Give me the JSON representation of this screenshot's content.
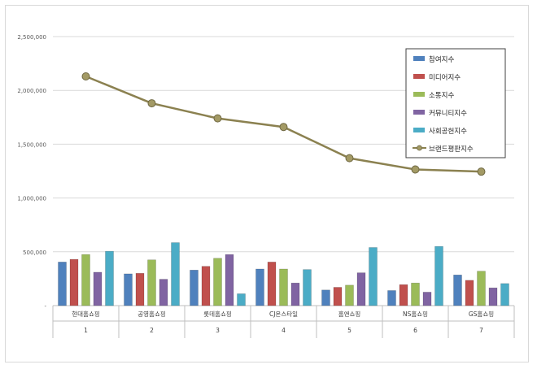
{
  "chart_data": {
    "type": "bar",
    "secondary_type": "line",
    "categories": [
      "현대홈쇼핑",
      "공영홈쇼핑",
      "롯데홈쇼핑",
      "CJ온스타일",
      "홈앤쇼핑",
      "NS홈쇼핑",
      "GS홈쇼핑"
    ],
    "category_ranks": [
      "1",
      "2",
      "3",
      "4",
      "5",
      "6",
      "7"
    ],
    "series": [
      {
        "name": "참여지수",
        "color": "#4f81bd",
        "values": [
          405000,
          295000,
          330000,
          340000,
          145000,
          140000,
          285000
        ]
      },
      {
        "name": "미디어지수",
        "color": "#c0504d",
        "values": [
          430000,
          300000,
          365000,
          405000,
          170000,
          195000,
          235000
        ]
      },
      {
        "name": "소통지수",
        "color": "#9bbb59",
        "values": [
          475000,
          425000,
          440000,
          340000,
          190000,
          210000,
          320000
        ]
      },
      {
        "name": "커뮤니티지수",
        "color": "#8064a2",
        "values": [
          310000,
          245000,
          475000,
          210000,
          305000,
          125000,
          165000
        ]
      },
      {
        "name": "사회공헌지수",
        "color": "#4bacc6",
        "values": [
          505000,
          585000,
          110000,
          335000,
          540000,
          550000,
          205000
        ]
      }
    ],
    "line_series": {
      "name": "브랜드평판지수",
      "color": "#8b8150",
      "values": [
        2130000,
        1880000,
        1740000,
        1660000,
        1370000,
        1265000,
        1245000
      ]
    },
    "ylim": [
      0,
      2500000
    ],
    "yticks": [
      0,
      500000,
      1000000,
      1500000,
      2000000,
      2500000
    ],
    "ytick_labels": [
      "-",
      "500,000",
      "1,000,000",
      "1,500,000",
      "2,000,000",
      "2,500,000"
    ],
    "grid": true,
    "legend_position": "top-right"
  }
}
